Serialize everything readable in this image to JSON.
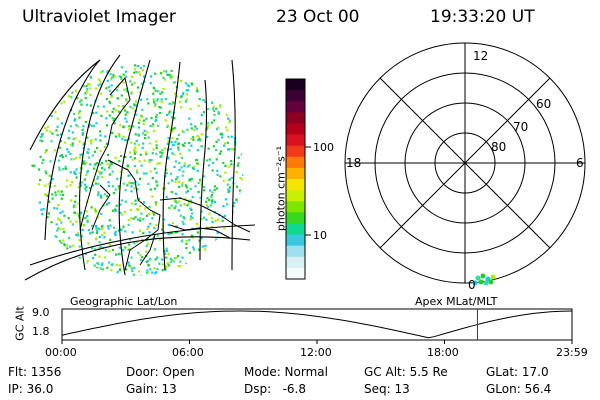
{
  "header": {
    "instrument": "Ultraviolet Imager",
    "date": "23 Oct 00",
    "time": "19:33:20 UT"
  },
  "colorbar": {
    "label": "photon cm⁻²s⁻¹",
    "ticks": [
      "100",
      "10"
    ],
    "colors": [
      "#1a0020",
      "#3d0033",
      "#66003d",
      "#8c0022",
      "#b4001a",
      "#d81020",
      "#f23a1a",
      "#ff7a0a",
      "#ffb000",
      "#f5e400",
      "#c8f000",
      "#7fe600",
      "#36d820",
      "#10d890",
      "#38c8e0",
      "#9ee0ee",
      "#d8f0f4",
      "#f4fafb"
    ]
  },
  "left_map": {
    "label": "Geographic Lat/Lon",
    "dot_colors": [
      "#22cc33",
      "#33dd99",
      "#11ccee",
      "#aaee00"
    ]
  },
  "right_map": {
    "label": "Apex MLat/MLT",
    "mlt_labels": {
      "top": "12",
      "left": "18",
      "right": "6",
      "bottom": "0"
    },
    "lat_labels": [
      "60",
      "70",
      "80"
    ]
  },
  "timeline": {
    "ylabel": "GC Alt",
    "y_ticks": [
      "9.0",
      "1.8"
    ],
    "x_ticks": [
      "00:00",
      "06:00",
      "12:00",
      "18:00",
      "23:59"
    ],
    "current_marker_hours": 19.55
  },
  "footer": {
    "flt": "Flt: 1356",
    "ip": "IP: 36.0",
    "door": "Door: Open",
    "gain": "Gain: 13",
    "mode": "Mode: Normal",
    "dsp": "Dsp:   -6.8",
    "gcalt": "GC Alt: 5.5 Re",
    "seq": "Seq: 13",
    "glat": "GLat: 17.0",
    "glon": "GLon: 56.4"
  }
}
